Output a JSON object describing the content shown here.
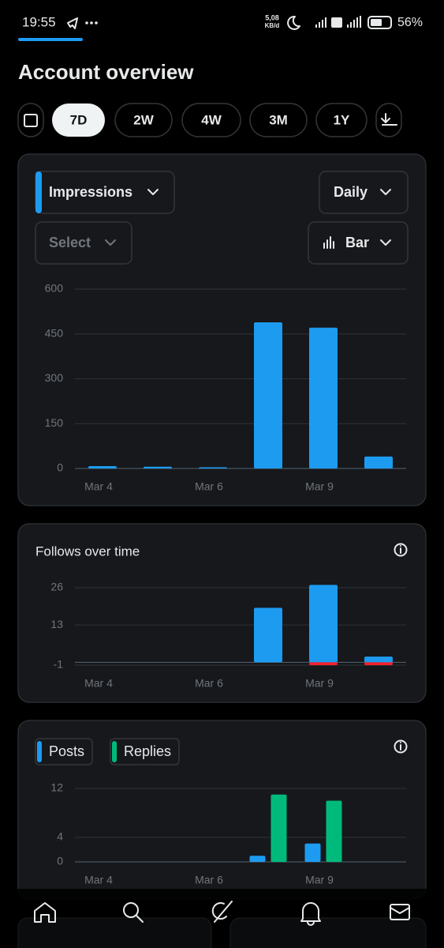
{
  "status_bar": {
    "time": "19:55",
    "net_speed": "5,08",
    "net_unit": "KB/d",
    "battery": "56%"
  },
  "title": "Account overview",
  "range_tabs": [
    "7D",
    "2W",
    "4W",
    "3M",
    "1Y"
  ],
  "impressions_card": {
    "metric": "Impressions",
    "interval": "Daily",
    "compare": "Select",
    "chart_style": "Bar",
    "chart_data": {
      "type": "bar",
      "categories": [
        "Mar 4",
        null,
        "Mar 6",
        null,
        "Mar 9",
        null
      ],
      "series": [
        {
          "color": "#1d9bf0",
          "values": [
            8,
            6,
            4,
            489,
            471,
            40
          ]
        }
      ],
      "ylim": [
        0,
        600
      ],
      "yticks": [
        0,
        150,
        300,
        450,
        600
      ],
      "grid": true
    }
  },
  "follows_card": {
    "title": "Follows over time",
    "chart_data": {
      "type": "bar",
      "stacked": true,
      "categories": [
        "Mar 4",
        null,
        "Mar 6",
        null,
        "Mar 9",
        null
      ],
      "series": [
        {
          "color": "#1d9bf0",
          "values": [
            0,
            0,
            0,
            19,
            27,
            2
          ]
        },
        {
          "color": "#f4212e",
          "values": [
            0,
            0,
            0,
            0,
            -1,
            -1
          ]
        }
      ],
      "ylim": [
        -1,
        26
      ],
      "yticks": [
        -1,
        13,
        26
      ],
      "grid": true
    }
  },
  "posts_card": {
    "chart_data": {
      "type": "bar",
      "stacked": false,
      "categories": [
        "Mar 4",
        null,
        "Mar 6",
        null,
        "Mar 9",
        null
      ],
      "series": [
        {
          "name": "Posts",
          "color": "#1d9bf0",
          "values": [
            0,
            0,
            0,
            1,
            3,
            0
          ]
        },
        {
          "name": "Replies",
          "color": "#00ba7c",
          "values": [
            0,
            0,
            0,
            11,
            10,
            0
          ]
        }
      ],
      "ylim": [
        0,
        12
      ],
      "yticks": [
        0,
        4,
        12
      ],
      "grid": true
    }
  }
}
